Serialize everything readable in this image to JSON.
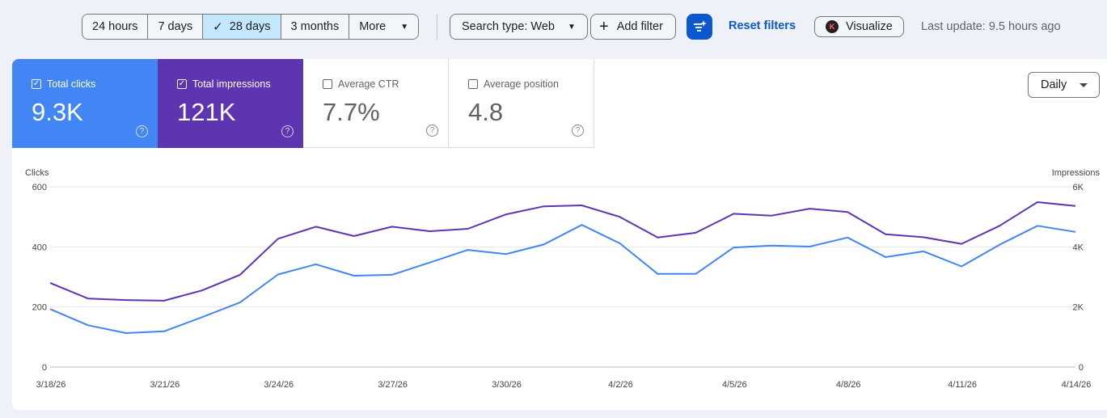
{
  "toolbar": {
    "ranges": [
      {
        "label": "24 hours",
        "active": false
      },
      {
        "label": "7 days",
        "active": false
      },
      {
        "label": "28 days",
        "active": true
      },
      {
        "label": "3 months",
        "active": false
      },
      {
        "label": "More",
        "active": false
      }
    ],
    "search_type": "Search type: Web",
    "add_filter": "Add filter",
    "reset_filters": "Reset filters",
    "visualize": "Visualize",
    "visualize_logo": "K",
    "last_update": "Last update: 9.5 hours ago"
  },
  "metrics": [
    {
      "label": "Total clicks",
      "value": "9.3K",
      "checked": true,
      "color": "#4285f4"
    },
    {
      "label": "Total impressions",
      "value": "121K",
      "checked": true,
      "color": "#5e35b1"
    },
    {
      "label": "Average CTR",
      "value": "7.7%",
      "checked": false
    },
    {
      "label": "Average position",
      "value": "4.8",
      "checked": false
    }
  ],
  "granularity": "Daily",
  "chart_data": {
    "type": "line",
    "y_left_label": "Clicks",
    "y_right_label": "Impressions",
    "y_left_ticks": [
      "600",
      "400",
      "200",
      "0"
    ],
    "y_right_ticks": [
      "6K",
      "4K",
      "2K",
      "0"
    ],
    "y_left_lim": [
      0,
      600
    ],
    "y_right_lim": [
      0,
      6000
    ],
    "x_tick_labels": [
      "3/18/26",
      "3/21/26",
      "3/24/26",
      "3/27/26",
      "3/30/26",
      "4/2/26",
      "4/5/26",
      "4/8/26",
      "4/11/26",
      "4/14/26"
    ],
    "x_tick_indices": [
      0,
      3,
      6,
      9,
      12,
      15,
      18,
      21,
      24,
      27
    ],
    "grid": true,
    "series": [
      {
        "name": "Clicks",
        "axis": "left",
        "color": "#4285f4",
        "values": [
          193,
          139,
          113,
          119,
          166,
          215,
          308,
          342,
          304,
          307,
          348,
          390,
          376,
          408,
          473,
          412,
          310,
          310,
          398,
          404,
          401,
          431,
          366,
          385,
          335,
          407,
          470,
          450
        ]
      },
      {
        "name": "Impressions",
        "axis": "right",
        "color": "#5e35b1",
        "values": [
          2800,
          2280,
          2230,
          2210,
          2550,
          3070,
          4270,
          4670,
          4360,
          4670,
          4520,
          4600,
          5080,
          5350,
          5380,
          5000,
          4310,
          4470,
          5100,
          5040,
          5270,
          5160,
          4420,
          4320,
          4100,
          4700,
          5490,
          5360
        ]
      }
    ]
  }
}
